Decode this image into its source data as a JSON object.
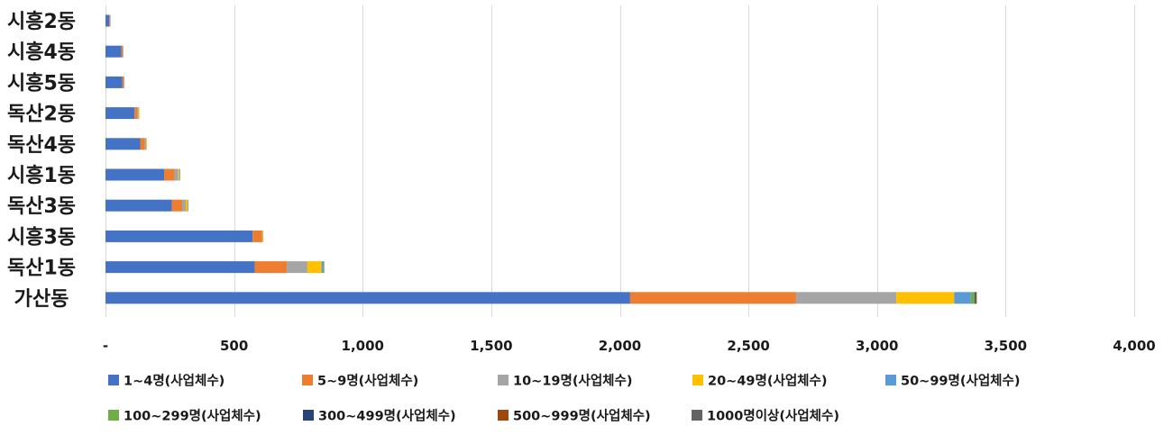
{
  "chart_data": {
    "type": "bar",
    "orientation": "horizontal",
    "stacked": true,
    "categories": [
      "시흥2동",
      "시흥4동",
      "시흥5동",
      "독산2동",
      "독산4동",
      "시흥1동",
      "독산3동",
      "시흥3동",
      "독산1동",
      "가산동"
    ],
    "series": [
      {
        "name": "1~4명(사업체수)",
        "color": "#4472C4",
        "values": [
          15,
          62,
          65,
          113,
          135,
          228,
          258,
          572,
          580,
          2040
        ]
      },
      {
        "name": "5~9명(사업체수)",
        "color": "#ED7D31",
        "values": [
          2,
          5,
          6,
          12,
          18,
          40,
          40,
          37,
          125,
          645
        ]
      },
      {
        "name": "10~19명(사업체수)",
        "color": "#A5A5A5",
        "values": [
          1,
          2,
          2,
          4,
          5,
          15,
          14,
          2,
          80,
          390
        ]
      },
      {
        "name": "20~49명(사업체수)",
        "color": "#FFC000",
        "values": [
          0,
          0,
          0,
          1,
          2,
          5,
          8,
          1,
          55,
          225
        ]
      },
      {
        "name": "50~99명(사업체수)",
        "color": "#5B9BD5",
        "values": [
          0,
          0,
          0,
          0,
          0,
          1,
          1,
          0,
          8,
          65
        ]
      },
      {
        "name": "100~299명(사업체수)",
        "color": "#70AD47",
        "values": [
          0,
          0,
          0,
          0,
          0,
          0,
          0,
          0,
          3,
          15
        ]
      },
      {
        "name": "300~499명(사업체수)",
        "color": "#264478",
        "values": [
          0,
          0,
          0,
          0,
          0,
          0,
          0,
          0,
          0,
          3
        ]
      },
      {
        "name": "500~999명(사업체수)",
        "color": "#9E480E",
        "values": [
          0,
          0,
          0,
          0,
          0,
          0,
          0,
          0,
          0,
          2
        ]
      },
      {
        "name": "1000명이상(사업체수)",
        "color": "#636363",
        "values": [
          0,
          0,
          0,
          0,
          0,
          0,
          0,
          0,
          0,
          1
        ]
      }
    ],
    "xlim": [
      0,
      4000
    ],
    "x_ticks": [
      0,
      500,
      1000,
      1500,
      2000,
      2500,
      3000,
      3500,
      4000
    ],
    "x_tick_labels": [
      "-",
      "500",
      "1,000",
      "1,500",
      "2,000",
      "2,500",
      "3,000",
      "3,500",
      "4,000"
    ],
    "grid": "vertical",
    "legend_position": "bottom"
  }
}
